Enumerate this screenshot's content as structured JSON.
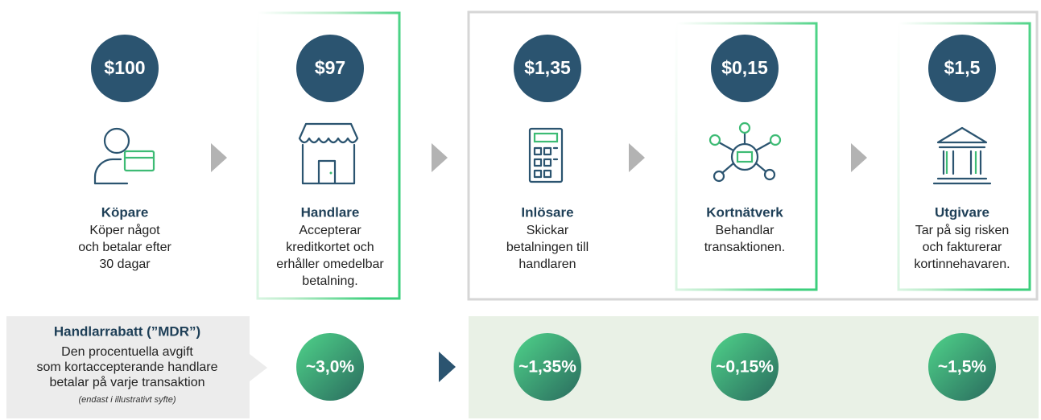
{
  "columns": [
    {
      "amount": "$100",
      "title": "Köpare",
      "description": [
        "Köper något",
        "och betalar efter",
        "30 dagar"
      ]
    },
    {
      "amount": "$97",
      "title": "Handlare",
      "description": [
        "Accepterar",
        "kreditkortet och",
        "erhåller omedelbar",
        "betalning."
      ]
    },
    {
      "amount": "$1,35",
      "title": "Inlösare",
      "description": [
        "Skickar",
        "betalningen till",
        "handlaren"
      ]
    },
    {
      "amount": "$0,15",
      "title": "Kortnätverk",
      "description": [
        "Behandlar",
        "transaktionen."
      ]
    },
    {
      "amount": "$1,5",
      "title": "Utgivare",
      "description": [
        "Tar på sig risken",
        "och fakturerar",
        "kortinnehavaren."
      ]
    }
  ],
  "mdr": {
    "title": "Handlarrabatt (”MDR”)",
    "description": [
      "Den procentuella avgift",
      "som kortaccepterande handlare",
      "betalar på varje transaktion"
    ],
    "note": "(endast i illustrativt syfte)",
    "rates": [
      "~3,0%",
      "~1,35%",
      "~0,15%",
      "~1,5%"
    ]
  }
}
